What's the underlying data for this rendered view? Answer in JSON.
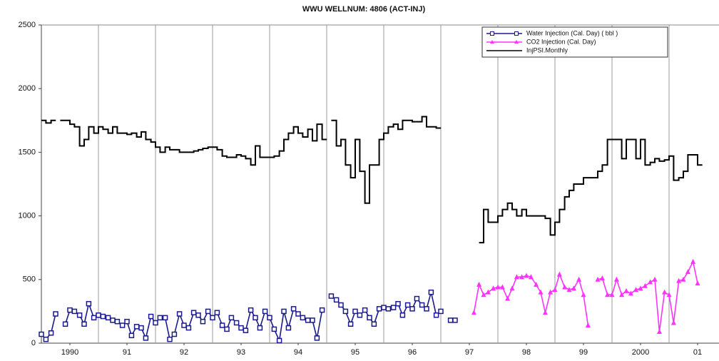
{
  "chart_data": {
    "type": "line",
    "title": "WWU  WELLNUM: 4806 (ACT-INJ)",
    "xlim": [
      1990,
      2001.875
    ],
    "xticks": [
      {
        "value": 1990.5,
        "label": "1990"
      },
      {
        "value": 1991.5,
        "label": "91"
      },
      {
        "value": 1992.5,
        "label": "92"
      },
      {
        "value": 1993.5,
        "label": "93"
      },
      {
        "value": 1994.5,
        "label": "94"
      },
      {
        "value": 1995.5,
        "label": "95"
      },
      {
        "value": 1996.5,
        "label": "96"
      },
      {
        "value": 1997.5,
        "label": "97"
      },
      {
        "value": 1998.5,
        "label": "98"
      },
      {
        "value": 1999.5,
        "label": "99"
      },
      {
        "value": 2000.5,
        "label": "2000"
      },
      {
        "value": 2001.5,
        "label": "01"
      }
    ],
    "xgrid": [
      1991,
      1992,
      1993,
      1994,
      1995,
      1996,
      1997,
      1998,
      1999,
      2000,
      2001
    ],
    "ylim": [
      0,
      2500
    ],
    "yticks": [
      0,
      500,
      1000,
      1500,
      2000,
      2500
    ],
    "legend": "top-right",
    "series": [
      {
        "name": "Water Injection (Cal. Day) ( bbl )",
        "color": "#1a1a8c",
        "marker": "square",
        "x": [
          1990.0,
          1990.08,
          1990.17,
          1990.25,
          1990.33,
          1990.42,
          1990.5,
          1990.58,
          1990.67,
          1990.75,
          1990.83,
          1990.92,
          1991.0,
          1991.08,
          1991.17,
          1991.25,
          1991.33,
          1991.42,
          1991.5,
          1991.58,
          1991.67,
          1991.75,
          1991.83,
          1991.92,
          1992.0,
          1992.08,
          1992.17,
          1992.25,
          1992.33,
          1992.42,
          1992.5,
          1992.58,
          1992.67,
          1992.75,
          1992.83,
          1992.92,
          1993.0,
          1993.08,
          1993.17,
          1993.25,
          1993.33,
          1993.42,
          1993.5,
          1993.58,
          1993.67,
          1993.75,
          1993.83,
          1993.92,
          1994.0,
          1994.08,
          1994.17,
          1994.25,
          1994.33,
          1994.42,
          1994.5,
          1994.58,
          1994.67,
          1994.75,
          1994.83,
          1994.92,
          1995.0,
          1995.08,
          1995.17,
          1995.25,
          1995.33,
          1995.42,
          1995.5,
          1995.58,
          1995.67,
          1995.75,
          1995.83,
          1995.92,
          1996.0,
          1996.08,
          1996.17,
          1996.25,
          1996.33,
          1996.42,
          1996.5,
          1996.58,
          1996.67,
          1996.75,
          1996.83,
          1996.92,
          1997.0,
          1997.08,
          1997.17,
          1997.25
        ],
        "values": [
          70,
          30,
          80,
          230,
          null,
          150,
          260,
          250,
          220,
          150,
          310,
          200,
          220,
          210,
          200,
          180,
          170,
          140,
          170,
          60,
          130,
          120,
          40,
          210,
          160,
          200,
          200,
          30,
          70,
          230,
          140,
          120,
          240,
          220,
          170,
          250,
          200,
          240,
          140,
          110,
          200,
          160,
          120,
          100,
          260,
          200,
          120,
          250,
          200,
          110,
          20,
          250,
          120,
          270,
          230,
          200,
          180,
          180,
          40,
          260,
          null,
          370,
          340,
          300,
          250,
          150,
          250,
          220,
          260,
          200,
          150,
          270,
          280,
          270,
          280,
          310,
          220,
          300,
          270,
          350,
          300,
          270,
          400,
          220,
          250,
          null,
          180,
          180
        ]
      },
      {
        "name": "CO2 Injection (Cal. Day)",
        "color": "#ff33ff",
        "marker": "triangle",
        "x": [
          1997.58,
          1997.67,
          1997.75,
          1997.83,
          1997.92,
          1998.0,
          1998.08,
          1998.17,
          1998.25,
          1998.33,
          1998.42,
          1998.5,
          1998.58,
          1998.67,
          1998.75,
          1998.83,
          1998.92,
          1999.0,
          1999.08,
          1999.17,
          1999.25,
          1999.33,
          1999.42,
          1999.5,
          1999.58,
          1999.67,
          1999.75,
          1999.83,
          1999.92,
          2000.0,
          2000.08,
          2000.17,
          2000.25,
          2000.33,
          2000.42,
          2000.5,
          2000.58,
          2000.67,
          2000.75,
          2000.83,
          2000.92,
          2001.0,
          2001.08,
          2001.17,
          2001.25,
          2001.33,
          2001.42,
          2001.5
        ],
        "values": [
          240,
          460,
          380,
          400,
          430,
          440,
          440,
          350,
          430,
          520,
          520,
          530,
          520,
          460,
          400,
          240,
          400,
          420,
          540,
          440,
          420,
          430,
          500,
          380,
          140,
          null,
          500,
          510,
          380,
          380,
          500,
          380,
          410,
          390,
          420,
          430,
          450,
          480,
          500,
          90,
          400,
          380,
          160,
          490,
          500,
          560,
          640,
          470
        ]
      },
      {
        "name": "InjPSI.Monthly",
        "color": "#000000",
        "step": true,
        "x": [
          1990.0,
          1990.08,
          1990.17,
          1990.25,
          1990.33,
          1990.42,
          1990.5,
          1990.58,
          1990.67,
          1990.75,
          1990.83,
          1990.92,
          1991.0,
          1991.08,
          1991.17,
          1991.25,
          1991.33,
          1991.42,
          1991.5,
          1991.58,
          1991.67,
          1991.75,
          1991.83,
          1991.92,
          1992.0,
          1992.08,
          1992.17,
          1992.25,
          1992.33,
          1992.42,
          1992.5,
          1992.58,
          1992.67,
          1992.75,
          1992.83,
          1992.92,
          1993.0,
          1993.08,
          1993.17,
          1993.25,
          1993.33,
          1993.42,
          1993.5,
          1993.58,
          1993.67,
          1993.75,
          1993.83,
          1993.92,
          1994.0,
          1994.08,
          1994.17,
          1994.25,
          1994.33,
          1994.42,
          1994.5,
          1994.58,
          1994.67,
          1994.75,
          1994.83,
          1994.92,
          1995.0,
          1995.08,
          1995.17,
          1995.25,
          1995.33,
          1995.42,
          1995.5,
          1995.58,
          1995.67,
          1995.75,
          1995.83,
          1995.92,
          1996.0,
          1996.08,
          1996.17,
          1996.25,
          1996.33,
          1996.42,
          1996.5,
          1996.58,
          1996.67,
          1996.75,
          1996.83,
          1996.92,
          1997.0,
          1997.08,
          1997.17,
          1997.25,
          1997.33,
          1997.42,
          1997.5,
          1997.58,
          1997.67,
          1997.75,
          1997.83,
          1997.92,
          1998.0,
          1998.08,
          1998.17,
          1998.25,
          1998.33,
          1998.42,
          1998.5,
          1998.58,
          1998.67,
          1998.75,
          1998.83,
          1998.92,
          1999.0,
          1999.08,
          1999.17,
          1999.25,
          1999.33,
          1999.42,
          1999.5,
          1999.58,
          1999.67,
          1999.75,
          1999.83,
          1999.92,
          2000.0,
          2000.08,
          2000.17,
          2000.25,
          2000.33,
          2000.42,
          2000.5,
          2000.58,
          2000.67,
          2000.75,
          2000.83,
          2000.92,
          2001.0,
          2001.08,
          2001.17,
          2001.25,
          2001.33,
          2001.42,
          2001.5
        ],
        "values": [
          1750,
          1730,
          1750,
          null,
          1750,
          1750,
          1720,
          1700,
          1550,
          1600,
          1700,
          1650,
          1700,
          1680,
          1650,
          1700,
          1650,
          1650,
          1640,
          1650,
          1620,
          1660,
          1600,
          1580,
          1540,
          1500,
          1540,
          1520,
          1520,
          1500,
          1500,
          1500,
          1510,
          1520,
          1530,
          1540,
          1540,
          1520,
          1470,
          1460,
          1460,
          1480,
          1470,
          1450,
          1400,
          1550,
          1460,
          1460,
          1460,
          1470,
          1510,
          1600,
          1650,
          1700,
          1650,
          1620,
          1680,
          1590,
          1720,
          1600,
          null,
          1750,
          1550,
          1600,
          1400,
          1300,
          1600,
          1350,
          1100,
          1400,
          1400,
          1600,
          1650,
          1700,
          1720,
          1680,
          1750,
          1750,
          1740,
          1740,
          1780,
          1700,
          1700,
          1690,
          null,
          null,
          null,
          null,
          null,
          null,
          null,
          null,
          790,
          1050,
          950,
          950,
          1000,
          1050,
          1100,
          1050,
          1000,
          1050,
          1000,
          1000,
          1000,
          1000,
          980,
          850,
          950,
          1050,
          1150,
          1200,
          1250,
          1250,
          1300,
          1300,
          1300,
          1350,
          1400,
          1600,
          1600,
          1600,
          1450,
          1600,
          1600,
          1450,
          1600,
          1400,
          1420,
          1450,
          1430,
          1440,
          1470,
          1280,
          1300,
          1350,
          1480,
          1480,
          1400
        ]
      }
    ]
  }
}
